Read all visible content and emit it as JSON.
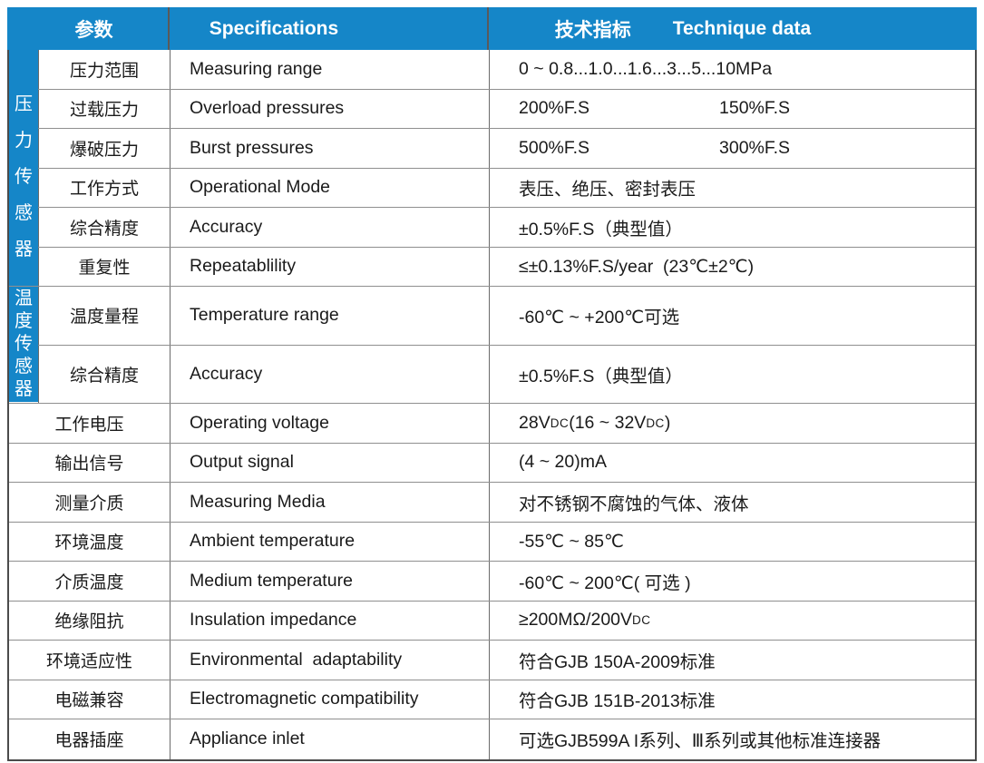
{
  "header": {
    "param": "参数",
    "spec": "Specifications",
    "tech_zh": "技术指标",
    "tech_en": "Technique data"
  },
  "sections": {
    "pressure": "压力传感器",
    "temperature": "温度传感器"
  },
  "colors": {
    "accent_blue": "#1586c8",
    "header_text": "#ffffff",
    "row_line": "#8f8f8f",
    "col_line": "#6b6b6b",
    "outer_border": "#4b4b4b",
    "text": "#1a1a1a"
  },
  "table": {
    "rows": [
      {
        "zh": "压力范围",
        "en": "Measuring range",
        "val": "0 ~ 0.8...1.0...1.6...3...5...10MPa",
        "section": "pressure"
      },
      {
        "zh": "过载压力",
        "en": "Overload pressures",
        "val": "200%F.S",
        "val2": "150%F.S",
        "section": "pressure"
      },
      {
        "zh": "爆破压力",
        "en": "Burst pressures",
        "val": "500%F.S",
        "val2": "300%F.S",
        "section": "pressure"
      },
      {
        "zh": "工作方式",
        "en": "Operational Mode",
        "val": "表压、绝压、密封表压",
        "section": "pressure"
      },
      {
        "zh": "综合精度",
        "en": "Accuracy",
        "val": "±0.5%F.S（典型值）",
        "section": "pressure"
      },
      {
        "zh": "重复性",
        "en": "Repeatablility",
        "val": "≤±0.13%F.S/year  (23℃±2℃)",
        "section": "pressure"
      },
      {
        "zh": "温度量程",
        "en": "Temperature range",
        "val": "-60℃ ~ +200℃可选",
        "section": "temperature",
        "tall": true
      },
      {
        "zh": "综合精度",
        "en": "Accuracy",
        "val": "±0.5%F.S（典型值）",
        "section": "temperature",
        "tall": true
      },
      {
        "zh": "工作电压",
        "en": "Operating voltage",
        "val": [
          {
            "t": "28V"
          },
          {
            "t": "DC",
            "small": true
          },
          {
            "t": "(16 ~ 32V"
          },
          {
            "t": "DC",
            "small": true
          },
          {
            "t": ")"
          }
        ]
      },
      {
        "zh": "输出信号",
        "en": "Output signal",
        "val": "(4 ~ 20)mA"
      },
      {
        "zh": "测量介质",
        "en": "Measuring Media",
        "val": "对不锈钢不腐蚀的气体、液体"
      },
      {
        "zh": "环境温度",
        "en": "Ambient temperature",
        "val": "-55℃ ~ 85℃"
      },
      {
        "zh": "介质温度",
        "en": "Medium temperature",
        "val": "-60℃ ~ 200℃( 可选 )"
      },
      {
        "zh": "绝缘阻抗",
        "en": "Insulation impedance",
        "val": [
          {
            "t": "≥200MΩ/200V"
          },
          {
            "t": "DC",
            "small": true
          }
        ]
      },
      {
        "zh": "环境适应性",
        "en": "Environmental  adaptability",
        "val": "符合GJB 150A-2009标准"
      },
      {
        "zh": "电磁兼容",
        "en": "Electromagnetic compatibility",
        "val": "符合GJB 151B-2013标准"
      },
      {
        "zh": "电器插座",
        "en": "Appliance inlet",
        "val": "可选GJB599A I系列、Ⅲ系列或其他标准连接器"
      }
    ]
  }
}
